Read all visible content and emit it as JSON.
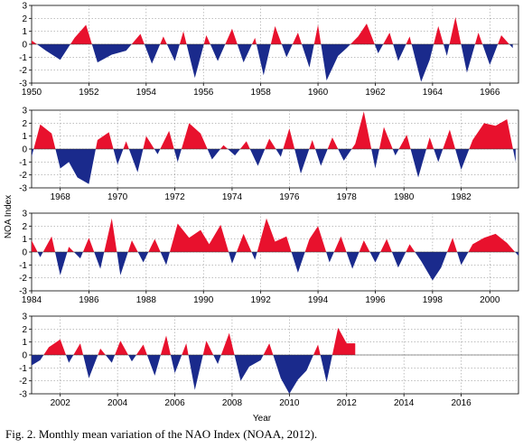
{
  "caption": "Fig. 2. Monthly mean variation of the NAO Index (NOAA, 2012).",
  "chart_data": {
    "type": "area",
    "title": "",
    "xlabel": "Year",
    "ylabel": "NOA Index",
    "ylim": [
      -3,
      3
    ],
    "yticks": [
      -3,
      -2,
      -1,
      0,
      1,
      2,
      3
    ],
    "grid": true,
    "positive_color": "#e8112d",
    "negative_color": "#1a2a8c",
    "panels": [
      {
        "xlim": [
          1950,
          1967
        ],
        "xticks": [
          "1950",
          "1952",
          "1954",
          "1956",
          "1958",
          "1960",
          "1962",
          "1964",
          "1966"
        ],
        "x": [
          1950.0,
          1950.5,
          1951.0,
          1951.5,
          1951.9,
          1952.3,
          1952.8,
          1953.3,
          1953.8,
          1954.2,
          1954.6,
          1955.0,
          1955.3,
          1955.7,
          1956.1,
          1956.5,
          1957.0,
          1957.4,
          1957.8,
          1958.1,
          1958.5,
          1958.9,
          1959.3,
          1959.7,
          1960.0,
          1960.3,
          1960.7,
          1961.0,
          1961.4,
          1961.7,
          1962.1,
          1962.5,
          1962.8,
          1963.2,
          1963.6,
          1963.9,
          1964.2,
          1964.5,
          1964.8,
          1965.2,
          1965.6,
          1966.0,
          1966.4,
          1966.8
        ],
        "values": [
          0.3,
          -0.5,
          -1.2,
          0.5,
          1.5,
          -1.4,
          -0.8,
          -0.5,
          0.8,
          -1.5,
          0.6,
          -1.3,
          1.0,
          -2.6,
          0.7,
          -1.3,
          1.2,
          -1.4,
          0.5,
          -2.4,
          1.4,
          -1.0,
          0.9,
          -1.8,
          1.5,
          -2.8,
          -0.9,
          -0.3,
          0.6,
          1.6,
          -0.7,
          0.9,
          -1.3,
          0.6,
          -2.9,
          -1.2,
          1.4,
          -0.9,
          2.1,
          -2.2,
          0.9,
          -1.6,
          0.7,
          -0.3
        ]
      },
      {
        "xlim": [
          1967,
          1984
        ],
        "xticks": [
          "1968",
          "1970",
          "1972",
          "1974",
          "1976",
          "1978",
          "1980",
          "1982"
        ],
        "x": [
          1967.0,
          1967.3,
          1967.7,
          1968.0,
          1968.3,
          1968.6,
          1969.0,
          1969.3,
          1969.7,
          1970.0,
          1970.3,
          1970.7,
          1971.0,
          1971.4,
          1971.8,
          1972.1,
          1972.5,
          1972.9,
          1973.3,
          1973.7,
          1974.1,
          1974.5,
          1974.9,
          1975.3,
          1975.7,
          1976.0,
          1976.4,
          1976.8,
          1977.1,
          1977.5,
          1977.9,
          1978.3,
          1978.6,
          1979.0,
          1979.3,
          1979.7,
          1980.1,
          1980.5,
          1980.9,
          1981.2,
          1981.6,
          1982.0,
          1982.4,
          1982.8,
          1983.2,
          1983.6,
          1983.9
        ],
        "values": [
          -0.6,
          1.9,
          1.2,
          -1.5,
          -1.0,
          -2.2,
          -2.7,
          0.7,
          1.3,
          -1.2,
          0.6,
          -1.8,
          1.0,
          -0.4,
          1.4,
          -1.0,
          2.0,
          1.2,
          -0.8,
          0.3,
          -0.5,
          0.6,
          -1.3,
          0.8,
          -0.6,
          1.6,
          -1.9,
          0.7,
          -1.3,
          0.9,
          -0.9,
          0.4,
          2.9,
          -1.5,
          1.7,
          -0.5,
          1.1,
          -2.2,
          0.9,
          -1.0,
          1.5,
          -1.6,
          0.7,
          2.0,
          1.8,
          2.3,
          -1.0
        ]
      },
      {
        "xlim": [
          1984,
          2001
        ],
        "xticks": [
          "1984",
          "1986",
          "1988",
          "1990",
          "1992",
          "1994",
          "1996",
          "1998",
          "2000"
        ],
        "x": [
          1984.0,
          1984.3,
          1984.7,
          1985.0,
          1985.3,
          1985.7,
          1986.0,
          1986.4,
          1986.8,
          1987.1,
          1987.5,
          1987.9,
          1988.3,
          1988.7,
          1989.1,
          1989.5,
          1989.9,
          1990.2,
          1990.6,
          1991.0,
          1991.4,
          1991.8,
          1992.2,
          1992.5,
          1992.9,
          1993.3,
          1993.7,
          1994.0,
          1994.4,
          1994.8,
          1995.2,
          1995.6,
          1996.0,
          1996.4,
          1996.8,
          1997.2,
          1997.6,
          1998.0,
          1998.3,
          1998.7,
          1999.0,
          1999.4,
          1999.8,
          2000.2,
          2000.6,
          2001.0
        ],
        "values": [
          0.9,
          -0.4,
          1.2,
          -1.8,
          0.4,
          -0.5,
          1.1,
          -1.3,
          2.6,
          -1.8,
          0.9,
          -0.8,
          1.0,
          -1.0,
          2.2,
          1.1,
          1.7,
          0.6,
          2.1,
          -0.9,
          1.4,
          -0.6,
          2.6,
          0.8,
          1.2,
          -1.6,
          1.0,
          2.0,
          -0.8,
          1.2,
          -1.3,
          0.9,
          -0.8,
          1.0,
          -1.2,
          0.6,
          -0.7,
          -2.2,
          -1.2,
          1.1,
          -1.0,
          0.6,
          1.1,
          1.4,
          0.7,
          -0.3
        ]
      },
      {
        "xlim": [
          2001,
          2018
        ],
        "xticks": [
          "2002",
          "2004",
          "2006",
          "2008",
          "2010",
          "2012",
          "2014",
          "2016"
        ],
        "x": [
          2001.0,
          2001.3,
          2001.6,
          2002.0,
          2002.3,
          2002.7,
          2003.0,
          2003.4,
          2003.8,
          2004.1,
          2004.5,
          2004.9,
          2005.3,
          2005.7,
          2006.0,
          2006.4,
          2006.7,
          2007.1,
          2007.5,
          2007.9,
          2008.3,
          2008.6,
          2009.0,
          2009.3,
          2009.7,
          2010.0,
          2010.3,
          2010.6,
          2011.0,
          2011.3,
          2011.7,
          2012.0,
          2012.3
        ],
        "values": [
          -0.8,
          -0.4,
          0.6,
          1.2,
          -0.6,
          0.9,
          -1.8,
          0.5,
          -0.6,
          1.1,
          -0.5,
          0.8,
          -1.6,
          1.5,
          -1.4,
          0.9,
          -2.7,
          1.1,
          -0.7,
          1.7,
          -2.0,
          -0.9,
          -0.4,
          0.9,
          -1.8,
          -3.0,
          -1.9,
          -1.2,
          0.8,
          -2.1,
          2.1,
          0.9,
          0.9
        ]
      }
    ]
  }
}
